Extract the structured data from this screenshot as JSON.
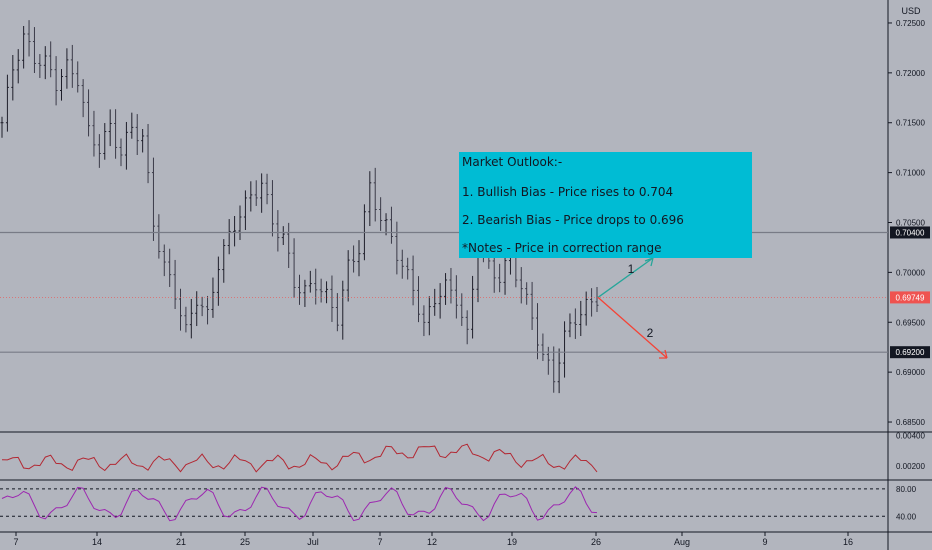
{
  "chart_data": {
    "type": "candlestick",
    "currency": "USD",
    "x_tick_labels": [
      "7",
      "14",
      "21",
      "25",
      "Jul",
      "7",
      "12",
      "19",
      "26",
      "Aug",
      "9",
      "16"
    ],
    "price_axis": {
      "range": [
        0.684,
        0.7265
      ],
      "ticks": [
        "0.72500",
        "0.72000",
        "0.71500",
        "0.71000",
        "0.70500",
        "0.70000",
        "0.69500",
        "0.69000",
        "0.68500"
      ],
      "tick_values": [
        0.725,
        0.72,
        0.715,
        0.71,
        0.705,
        0.7,
        0.695,
        0.69,
        0.685
      ]
    },
    "levels": [
      {
        "label": "0.70400",
        "value": 0.704,
        "color": "#787b86"
      },
      {
        "label": "0.69200",
        "value": 0.692,
        "color": "#787b86"
      }
    ],
    "current_price": {
      "label": "0.69749",
      "value": 0.69749,
      "color": "#ef5350"
    },
    "close_path": [
      {
        "x": 0,
        "y": 0.715
      },
      {
        "x": 2,
        "y": 0.7205
      },
      {
        "x": 4,
        "y": 0.7235
      },
      {
        "x": 6,
        "y": 0.7215
      },
      {
        "x": 8,
        "y": 0.721
      },
      {
        "x": 10,
        "y": 0.719
      },
      {
        "x": 12,
        "y": 0.7205
      },
      {
        "x": 14,
        "y": 0.7195
      },
      {
        "x": 16,
        "y": 0.714
      },
      {
        "x": 18,
        "y": 0.7125
      },
      {
        "x": 20,
        "y": 0.7145
      },
      {
        "x": 22,
        "y": 0.712
      },
      {
        "x": 24,
        "y": 0.7145
      },
      {
        "x": 26,
        "y": 0.7135
      },
      {
        "x": 28,
        "y": 0.705
      },
      {
        "x": 30,
        "y": 0.7005
      },
      {
        "x": 32,
        "y": 0.698
      },
      {
        "x": 34,
        "y": 0.694
      },
      {
        "x": 36,
        "y": 0.6975
      },
      {
        "x": 38,
        "y": 0.6955
      },
      {
        "x": 40,
        "y": 0.701
      },
      {
        "x": 42,
        "y": 0.7035
      },
      {
        "x": 44,
        "y": 0.706
      },
      {
        "x": 46,
        "y": 0.7075
      },
      {
        "x": 48,
        "y": 0.709
      },
      {
        "x": 50,
        "y": 0.705
      },
      {
        "x": 52,
        "y": 0.7035
      },
      {
        "x": 54,
        "y": 0.699
      },
      {
        "x": 56,
        "y": 0.698
      },
      {
        "x": 58,
        "y": 0.699
      },
      {
        "x": 60,
        "y": 0.6975
      },
      {
        "x": 62,
        "y": 0.6955
      },
      {
        "x": 64,
        "y": 0.7005
      },
      {
        "x": 66,
        "y": 0.7025
      },
      {
        "x": 68,
        "y": 0.7085
      },
      {
        "x": 70,
        "y": 0.7055
      },
      {
        "x": 72,
        "y": 0.7035
      },
      {
        "x": 74,
        "y": 0.7005
      },
      {
        "x": 76,
        "y": 0.6985
      },
      {
        "x": 78,
        "y": 0.6945
      },
      {
        "x": 80,
        "y": 0.6975
      },
      {
        "x": 82,
        "y": 0.6985
      },
      {
        "x": 84,
        "y": 0.6975
      },
      {
        "x": 86,
        "y": 0.6935
      },
      {
        "x": 88,
        "y": 0.7035
      },
      {
        "x": 90,
        "y": 0.7005
      },
      {
        "x": 92,
        "y": 0.6995
      },
      {
        "x": 94,
        "y": 0.7015
      },
      {
        "x": 96,
        "y": 0.6985
      },
      {
        "x": 98,
        "y": 0.6955
      },
      {
        "x": 100,
        "y": 0.6915
      },
      {
        "x": 102,
        "y": 0.6895
      },
      {
        "x": 104,
        "y": 0.6935
      },
      {
        "x": 106,
        "y": 0.6955
      },
      {
        "x": 108,
        "y": 0.6965
      },
      {
        "x": 110,
        "y": 0.6975
      }
    ],
    "indicators": [
      {
        "kind": "line",
        "color": "#b22833",
        "ticks": [
          "0.00400",
          "0.00200"
        ],
        "tick_values": [
          0.004,
          0.002
        ],
        "range": [
          0.0012,
          0.0041
        ]
      },
      {
        "kind": "line",
        "color": "#9c27b0",
        "ticks": [
          "80.00",
          "40.00"
        ],
        "tick_values": [
          80,
          40
        ],
        "range": [
          20,
          90
        ],
        "bands": [
          80,
          40
        ]
      }
    ]
  },
  "annotation": {
    "lines": [
      "Market Outlook:-",
      "1. Bullish Bias - Price rises to 0.704",
      "2. Bearish Bias - Price drops to 0.696",
      "*Notes - Price in correction range"
    ],
    "background": "#00bcd4",
    "arrow_labels": [
      "1",
      "2"
    ],
    "arrow_colors": [
      "#26a69a",
      "#f44336"
    ]
  }
}
